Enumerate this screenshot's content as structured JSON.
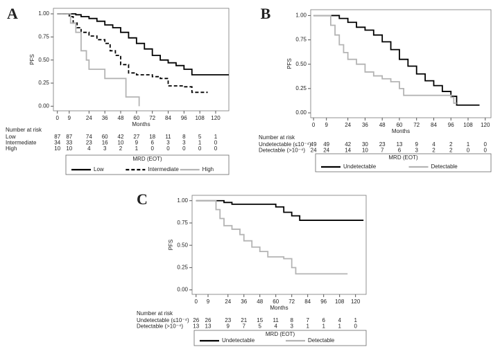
{
  "chart_data": [
    {
      "type": "line",
      "label": "A",
      "x_label": "Months",
      "y_label": "PFS",
      "risk_title": "Number at risk",
      "legend_title": "MRD (EOT)",
      "xlim": [
        -3,
        130
      ],
      "ylim": [
        -0.05,
        1.06
      ],
      "xticks": [
        0,
        9,
        24,
        36,
        48,
        60,
        72,
        84,
        96,
        108,
        120
      ],
      "yticks": [
        {
          "value": 0,
          "label": "0.00"
        },
        {
          "value": 0.25,
          "label": "0.25"
        },
        {
          "value": 0.5,
          "label": "0.50"
        },
        {
          "value": 0.75,
          "label": "0.75"
        },
        {
          "value": 1,
          "label": "1.00"
        }
      ],
      "series": [
        {
          "name": "Low",
          "color": "#000000",
          "style": "solid",
          "x": [
            0,
            14,
            18,
            24,
            30,
            36,
            42,
            48,
            54,
            60,
            66,
            72,
            78,
            84,
            90,
            96,
            102,
            130
          ],
          "values": [
            1,
            0.99,
            0.97,
            0.95,
            0.92,
            0.88,
            0.85,
            0.8,
            0.74,
            0.68,
            0.62,
            0.55,
            0.5,
            0.47,
            0.44,
            0.4,
            0.34,
            0.34
          ]
        },
        {
          "name": "Intermediate",
          "color": "#000000",
          "style": "dashed",
          "x": [
            0,
            9,
            12,
            15,
            18,
            24,
            30,
            36,
            40,
            44,
            48,
            54,
            60,
            72,
            78,
            84,
            96,
            102,
            114
          ],
          "values": [
            1,
            0.97,
            0.9,
            0.85,
            0.8,
            0.76,
            0.72,
            0.68,
            0.6,
            0.55,
            0.45,
            0.36,
            0.34,
            0.32,
            0.3,
            0.22,
            0.21,
            0.15,
            0.15
          ]
        },
        {
          "name": "High",
          "color": "#b4b4b4",
          "style": "solid",
          "x": [
            0,
            10,
            14,
            18,
            22,
            24,
            36,
            48,
            52,
            60,
            62
          ],
          "values": [
            1,
            0.9,
            0.8,
            0.6,
            0.5,
            0.4,
            0.3,
            0.3,
            0.1,
            0.1,
            0
          ]
        }
      ],
      "risk_table": [
        {
          "label": "Low",
          "counts": [
            87,
            87,
            74,
            60,
            42,
            27,
            18,
            11,
            8,
            5,
            1
          ]
        },
        {
          "label": "Intermediate",
          "counts": [
            34,
            33,
            23,
            16,
            10,
            9,
            6,
            3,
            3,
            1,
            0
          ]
        },
        {
          "label": "High",
          "counts": [
            10,
            10,
            4,
            3,
            2,
            1,
            0,
            0,
            0,
            0,
            0
          ]
        }
      ]
    },
    {
      "type": "line",
      "label": "B",
      "x_label": "Months",
      "y_label": "PFS",
      "risk_title": "Number at risk",
      "legend_title": "MRD (EOT)",
      "xlim": [
        -2,
        124
      ],
      "ylim": [
        -0.05,
        1.06
      ],
      "xticks": [
        0,
        9,
        24,
        36,
        48,
        60,
        72,
        84,
        96,
        108,
        120
      ],
      "yticks": [
        {
          "value": 0,
          "label": "0.00"
        },
        {
          "value": 0.25,
          "label": "0.25"
        },
        {
          "value": 0.5,
          "label": "0.50"
        },
        {
          "value": 0.75,
          "label": "0.75"
        },
        {
          "value": 1,
          "label": "1.00"
        }
      ],
      "series": [
        {
          "name": "Undetectable",
          "color": "#000000",
          "style": "solid",
          "x": [
            0,
            18,
            24,
            30,
            36,
            42,
            48,
            54,
            60,
            66,
            72,
            78,
            84,
            90,
            96,
            100,
            116
          ],
          "values": [
            1,
            0.97,
            0.93,
            0.88,
            0.85,
            0.8,
            0.73,
            0.65,
            0.55,
            0.48,
            0.4,
            0.33,
            0.28,
            0.22,
            0.17,
            0.08,
            0.08
          ]
        },
        {
          "name": "Detectable",
          "color": "#b4b4b4",
          "style": "solid",
          "x": [
            0,
            12,
            15,
            18,
            21,
            24,
            30,
            36,
            42,
            48,
            54,
            60,
            63,
            96,
            98,
            100
          ],
          "values": [
            1,
            0.9,
            0.8,
            0.7,
            0.62,
            0.55,
            0.5,
            0.42,
            0.38,
            0.35,
            0.32,
            0.25,
            0.18,
            0.16,
            0.1,
            0.1
          ]
        }
      ],
      "risk_table": [
        {
          "label": "Undetectable (≤10⁻⁴)",
          "counts": [
            49,
            49,
            42,
            30,
            23,
            13,
            9,
            4,
            2,
            1,
            0
          ]
        },
        {
          "label": "Detectable (>10⁻⁴)",
          "counts": [
            24,
            24,
            14,
            10,
            7,
            6,
            3,
            2,
            2,
            0,
            0
          ]
        }
      ]
    },
    {
      "type": "line",
      "label": "C",
      "x_label": "Months",
      "y_label": "PFS",
      "risk_title": "Number at risk",
      "legend_title": "MRD (EOT)",
      "xlim": [
        -3,
        128
      ],
      "ylim": [
        -0.05,
        1.06
      ],
      "xticks": [
        0,
        9,
        24,
        36,
        48,
        60,
        72,
        84,
        96,
        108,
        120
      ],
      "yticks": [
        {
          "value": 0,
          "label": "0.00"
        },
        {
          "value": 0.25,
          "label": "0.25"
        },
        {
          "value": 0.5,
          "label": "0.50"
        },
        {
          "value": 0.75,
          "label": "0.75"
        },
        {
          "value": 1,
          "label": "1.00"
        }
      ],
      "series": [
        {
          "name": "Undetectable",
          "color": "#000000",
          "style": "solid",
          "x": [
            0,
            21,
            27,
            60,
            66,
            72,
            78,
            126
          ],
          "values": [
            1,
            0.98,
            0.96,
            0.93,
            0.87,
            0.83,
            0.78,
            0.78
          ]
        },
        {
          "name": "Detectable",
          "color": "#b4b4b4",
          "style": "solid",
          "x": [
            0,
            15,
            18,
            21,
            27,
            33,
            36,
            42,
            48,
            54,
            66,
            72,
            75,
            114
          ],
          "values": [
            1,
            0.9,
            0.8,
            0.72,
            0.68,
            0.62,
            0.55,
            0.48,
            0.43,
            0.37,
            0.35,
            0.25,
            0.18,
            0.18
          ]
        }
      ],
      "risk_table": [
        {
          "label": "Undetectable (≤10⁻⁴)",
          "counts": [
            26,
            26,
            23,
            21,
            15,
            11,
            8,
            7,
            6,
            4,
            1
          ]
        },
        {
          "label": "Detectable (>10⁻⁴)",
          "counts": [
            13,
            13,
            9,
            7,
            5,
            4,
            3,
            1,
            1,
            1,
            0
          ]
        }
      ]
    }
  ]
}
